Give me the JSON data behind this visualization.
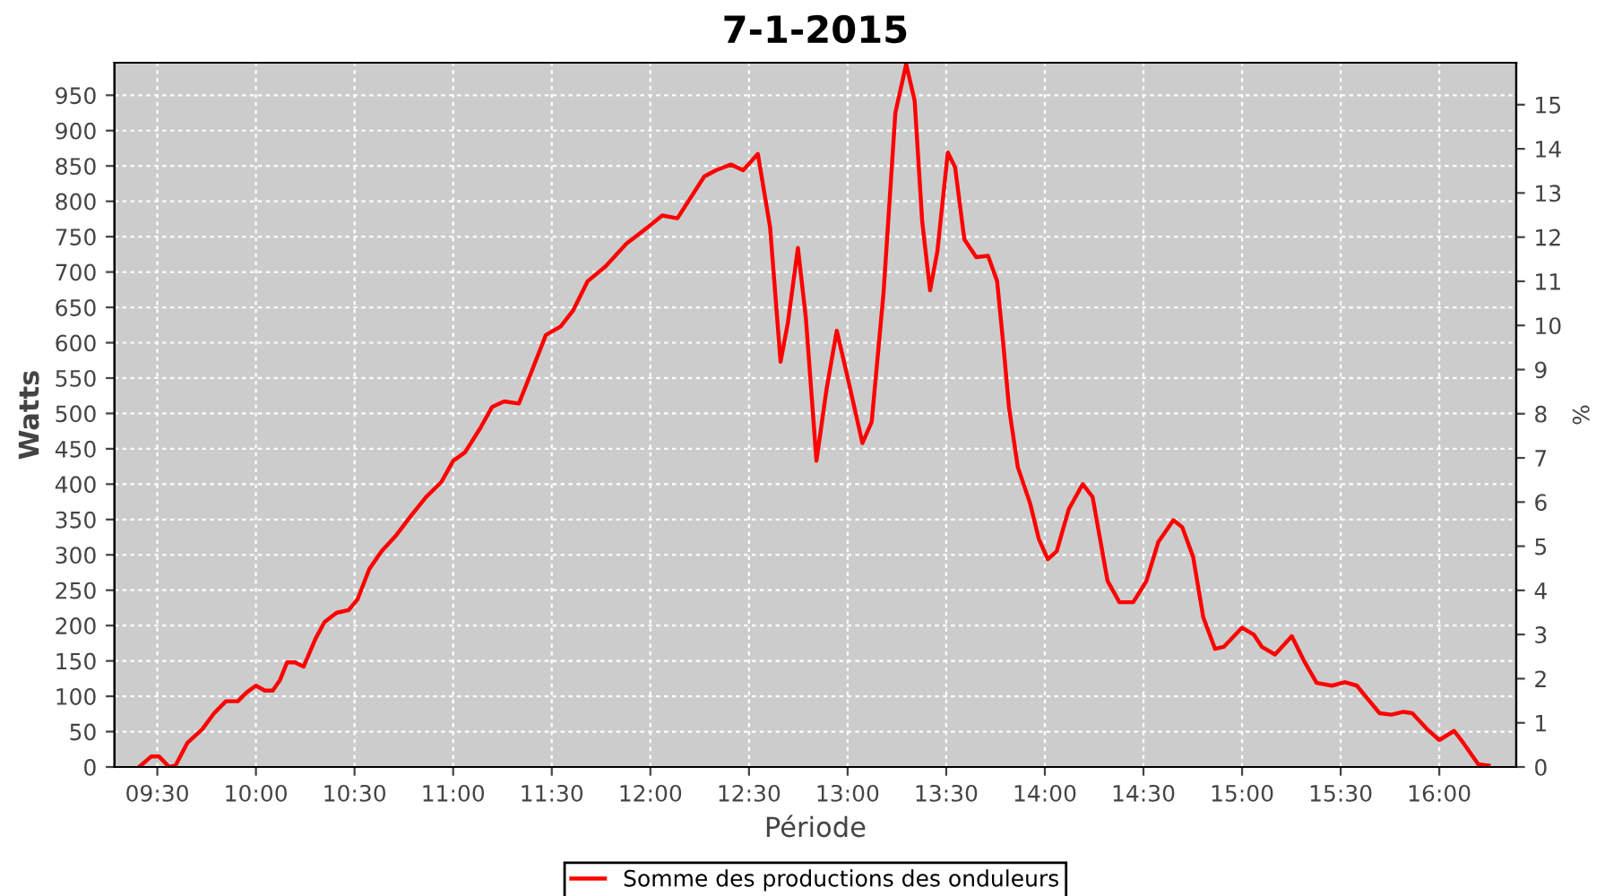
{
  "chart_data": {
    "type": "line",
    "title": "7-1-2015",
    "xlabel": "Période",
    "ylabel": "Watts",
    "y2label": "%",
    "x": [
      9.408,
      9.47,
      9.508,
      9.56,
      9.592,
      9.652,
      9.727,
      9.788,
      9.848,
      9.908,
      9.955,
      10.0,
      10.045,
      10.085,
      10.122,
      10.158,
      10.197,
      10.242,
      10.303,
      10.348,
      10.408,
      10.47,
      10.515,
      10.575,
      10.637,
      10.712,
      10.788,
      10.863,
      10.94,
      11.0,
      11.06,
      11.137,
      11.197,
      11.258,
      11.333,
      11.393,
      11.47,
      11.545,
      11.607,
      11.682,
      11.773,
      11.878,
      11.985,
      12.06,
      12.137,
      12.197,
      12.273,
      12.333,
      12.408,
      12.47,
      12.545,
      12.607,
      12.66,
      12.697,
      12.748,
      12.788,
      12.842,
      12.893,
      12.945,
      13.0,
      13.075,
      13.122,
      13.182,
      13.242,
      13.297,
      13.34,
      13.378,
      13.418,
      13.455,
      13.508,
      13.545,
      13.592,
      13.652,
      13.712,
      13.758,
      13.788,
      13.818,
      13.863,
      13.925,
      13.97,
      14.015,
      14.06,
      14.122,
      14.192,
      14.242,
      14.318,
      14.378,
      14.448,
      14.515,
      14.575,
      14.652,
      14.697,
      14.752,
      14.803,
      14.863,
      14.908,
      15.0,
      15.06,
      15.1,
      15.167,
      15.252,
      15.318,
      15.378,
      15.455,
      15.522,
      15.582,
      15.697,
      15.758,
      15.818,
      15.863,
      15.94,
      16.0,
      16.075,
      16.122,
      16.197,
      16.25
    ],
    "series": [
      {
        "name": "Somme des productions des onduleurs",
        "color": "#ff0000",
        "values": [
          0,
          15,
          15,
          0,
          2,
          34,
          53,
          76,
          93,
          93,
          106,
          115,
          108,
          108,
          123,
          148,
          148,
          142,
          182,
          205,
          218,
          222,
          237,
          280,
          305,
          328,
          356,
          382,
          403,
          433,
          445,
          479,
          509,
          517,
          514,
          556,
          611,
          623,
          645,
          687,
          708,
          740,
          763,
          780,
          776,
          802,
          835,
          844,
          852,
          844,
          867,
          763,
          573,
          628,
          734,
          636,
          433,
          534,
          617,
          551,
          458,
          488,
          670,
          925,
          994,
          942,
          772,
          674,
          729,
          869,
          848,
          746,
          721,
          723,
          687,
          602,
          509,
          424,
          373,
          322,
          294,
          305,
          365,
          400,
          382,
          263,
          233,
          233,
          263,
          318,
          349,
          339,
          297,
          212,
          167,
          170,
          197,
          187,
          170,
          159,
          185,
          148,
          119,
          115,
          120,
          115,
          76,
          74,
          78,
          76,
          53,
          38,
          51,
          34,
          4,
          2
        ]
      }
    ],
    "xlim": [
      9.283,
      16.39
    ],
    "xticks": [
      {
        "value": 9.5,
        "label": "09:30"
      },
      {
        "value": 10.0,
        "label": "10:00"
      },
      {
        "value": 10.5,
        "label": "10:30"
      },
      {
        "value": 11.0,
        "label": "11:00"
      },
      {
        "value": 11.5,
        "label": "11:30"
      },
      {
        "value": 12.0,
        "label": "12:00"
      },
      {
        "value": 12.5,
        "label": "12:30"
      },
      {
        "value": 13.0,
        "label": "13:00"
      },
      {
        "value": 13.5,
        "label": "13:30"
      },
      {
        "value": 14.0,
        "label": "14:00"
      },
      {
        "value": 14.5,
        "label": "14:30"
      },
      {
        "value": 15.0,
        "label": "15:00"
      },
      {
        "value": 15.5,
        "label": "15:30"
      },
      {
        "value": 16.0,
        "label": "16:00"
      }
    ],
    "ylim": [
      0,
      996
    ],
    "yticks": [
      0,
      50,
      100,
      150,
      200,
      250,
      300,
      350,
      400,
      450,
      500,
      550,
      600,
      650,
      700,
      750,
      800,
      850,
      900,
      950
    ],
    "y2lim": [
      0,
      15.95
    ],
    "y2ticks": [
      0,
      1,
      2,
      3,
      4,
      5,
      6,
      7,
      8,
      9,
      10,
      11,
      12,
      13,
      14,
      15
    ],
    "grid": true,
    "legend": "bottom",
    "marker": "none",
    "line_style": "solid"
  }
}
